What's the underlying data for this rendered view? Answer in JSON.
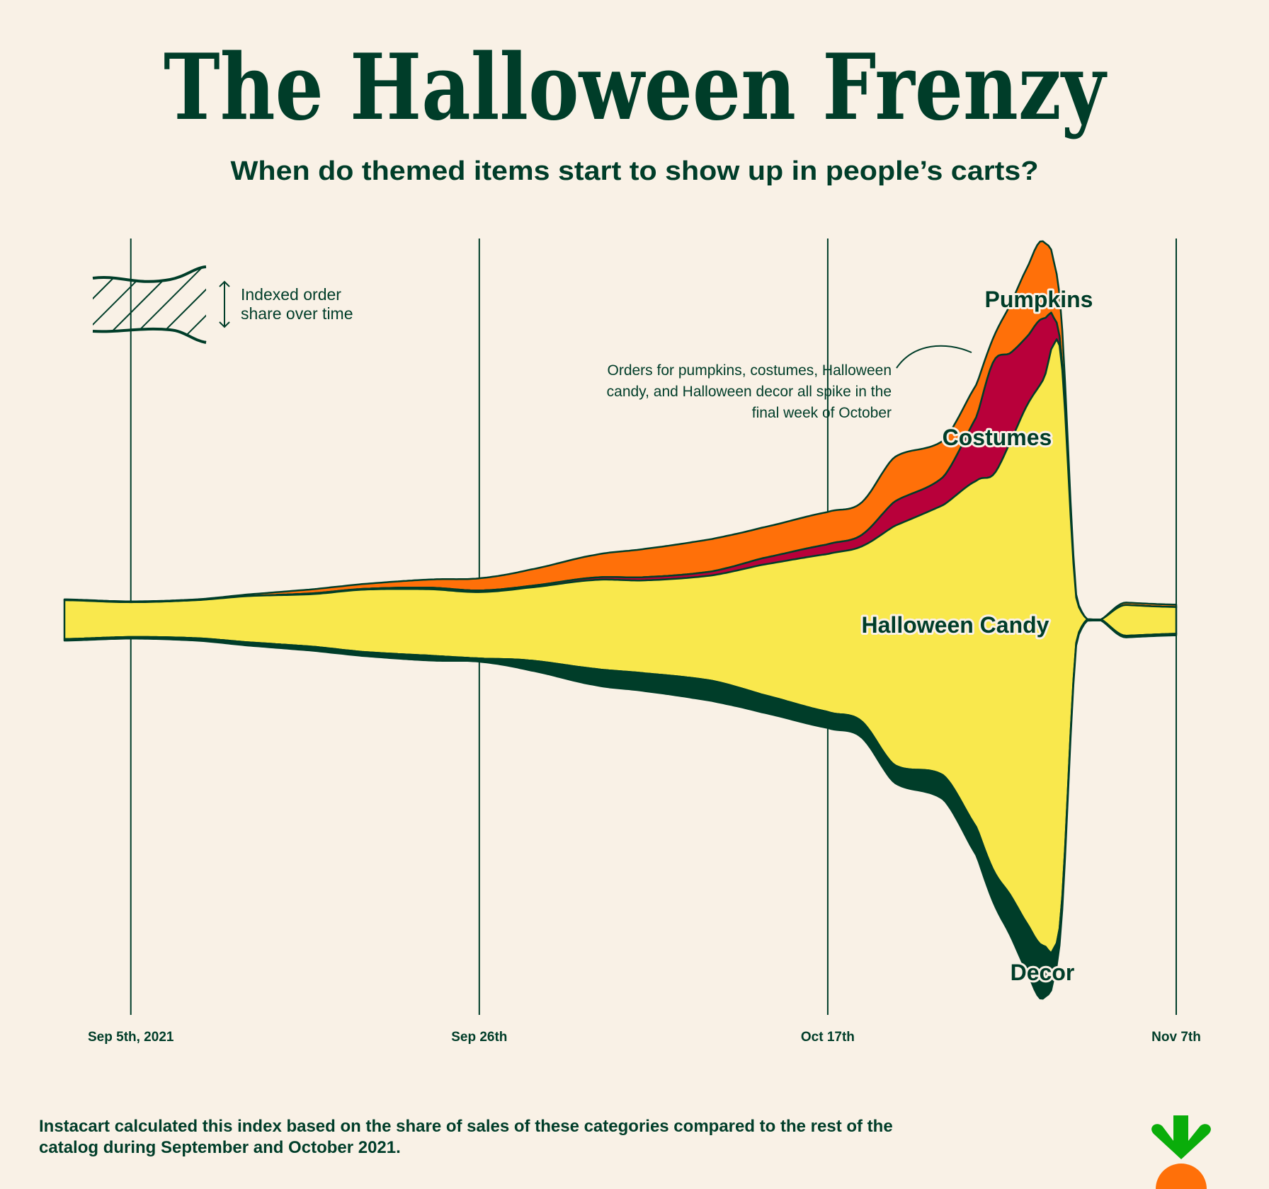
{
  "title": "The Halloween Frenzy",
  "subtitle": "When do themed items start to show up in people’s carts?",
  "legend": {
    "line1": "Indexed order",
    "line2": "share over time"
  },
  "annotation": {
    "line1": "Orders for pumpkins, costumes, Halloween",
    "line2": "candy, and Halloween decor all spike in the",
    "line3": "final week of October"
  },
  "footer": {
    "line1": "Instacart calculated this index based on the share of sales of these categories compared to the rest of the",
    "line2": "catalog during September and October 2021."
  },
  "colors": {
    "background": "#f9f1e6",
    "ink": "#003d29",
    "pumpkins": "#ff7009",
    "costumes": "#b8003a",
    "candy": "#f9e84d",
    "decor": "#003d29",
    "logo_leaf": "#0aad0a",
    "logo_carrot": "#ff7009"
  },
  "logo_icon": "instacart-carrot-icon",
  "chart_data": {
    "type": "area",
    "layout": "streamgraph, stacked, centered baseline",
    "title": "The Halloween Frenzy",
    "xlabel": "",
    "ylabel": "Indexed order share over time",
    "xlim": [
      "2021-09-01",
      "2021-11-07"
    ],
    "grid": "vertical lines at x ticks",
    "x_ticks": [
      {
        "date": "2021-09-05",
        "label": "Sep 5th, 2021"
      },
      {
        "date": "2021-09-26",
        "label": "Sep 26th"
      },
      {
        "date": "2021-10-17",
        "label": "Oct 17th"
      },
      {
        "date": "2021-11-07",
        "label": "Nov 7th"
      }
    ],
    "x": [
      "2021-09-01",
      "2021-09-05",
      "2021-09-09",
      "2021-09-12",
      "2021-09-16",
      "2021-09-19",
      "2021-09-23",
      "2021-09-26",
      "2021-09-29",
      "2021-10-03",
      "2021-10-06",
      "2021-10-10",
      "2021-10-13",
      "2021-10-17",
      "2021-10-19",
      "2021-10-21",
      "2021-10-24",
      "2021-10-26",
      "2021-10-27",
      "2021-10-28",
      "2021-10-29",
      "2021-10-30",
      "2021-10-31",
      "2021-11-01",
      "2021-11-04",
      "2021-11-07"
    ],
    "series": [
      {
        "name": "Pumpkins",
        "values": [
          1,
          1,
          1,
          2,
          5,
          6,
          10,
          15,
          20,
          28,
          35,
          40,
          38,
          40,
          40,
          55,
          45,
          40,
          30,
          60,
          85,
          95,
          50,
          3,
          3,
          3
        ]
      },
      {
        "name": "Costumes",
        "values": [
          0,
          0,
          0,
          0,
          1,
          1,
          2,
          2,
          2,
          3,
          4,
          5,
          8,
          12,
          14,
          30,
          35,
          80,
          140,
          110,
          85,
          75,
          10,
          0,
          0,
          0
        ]
      },
      {
        "name": "Halloween Candy",
        "values": [
          48,
          43,
          47,
          57,
          65,
          77,
          82,
          82,
          90,
          110,
          115,
          130,
          160,
          195,
          215,
          295,
          335,
          430,
          490,
          560,
          640,
          700,
          710,
          45,
          38,
          33
        ]
      },
      {
        "name": "Decor",
        "values": [
          2,
          2,
          3,
          4,
          5,
          5,
          6,
          4,
          12,
          20,
          22,
          25,
          22,
          20,
          20,
          22,
          30,
          35,
          40,
          50,
          60,
          65,
          20,
          3,
          2,
          2
        ]
      }
    ]
  }
}
